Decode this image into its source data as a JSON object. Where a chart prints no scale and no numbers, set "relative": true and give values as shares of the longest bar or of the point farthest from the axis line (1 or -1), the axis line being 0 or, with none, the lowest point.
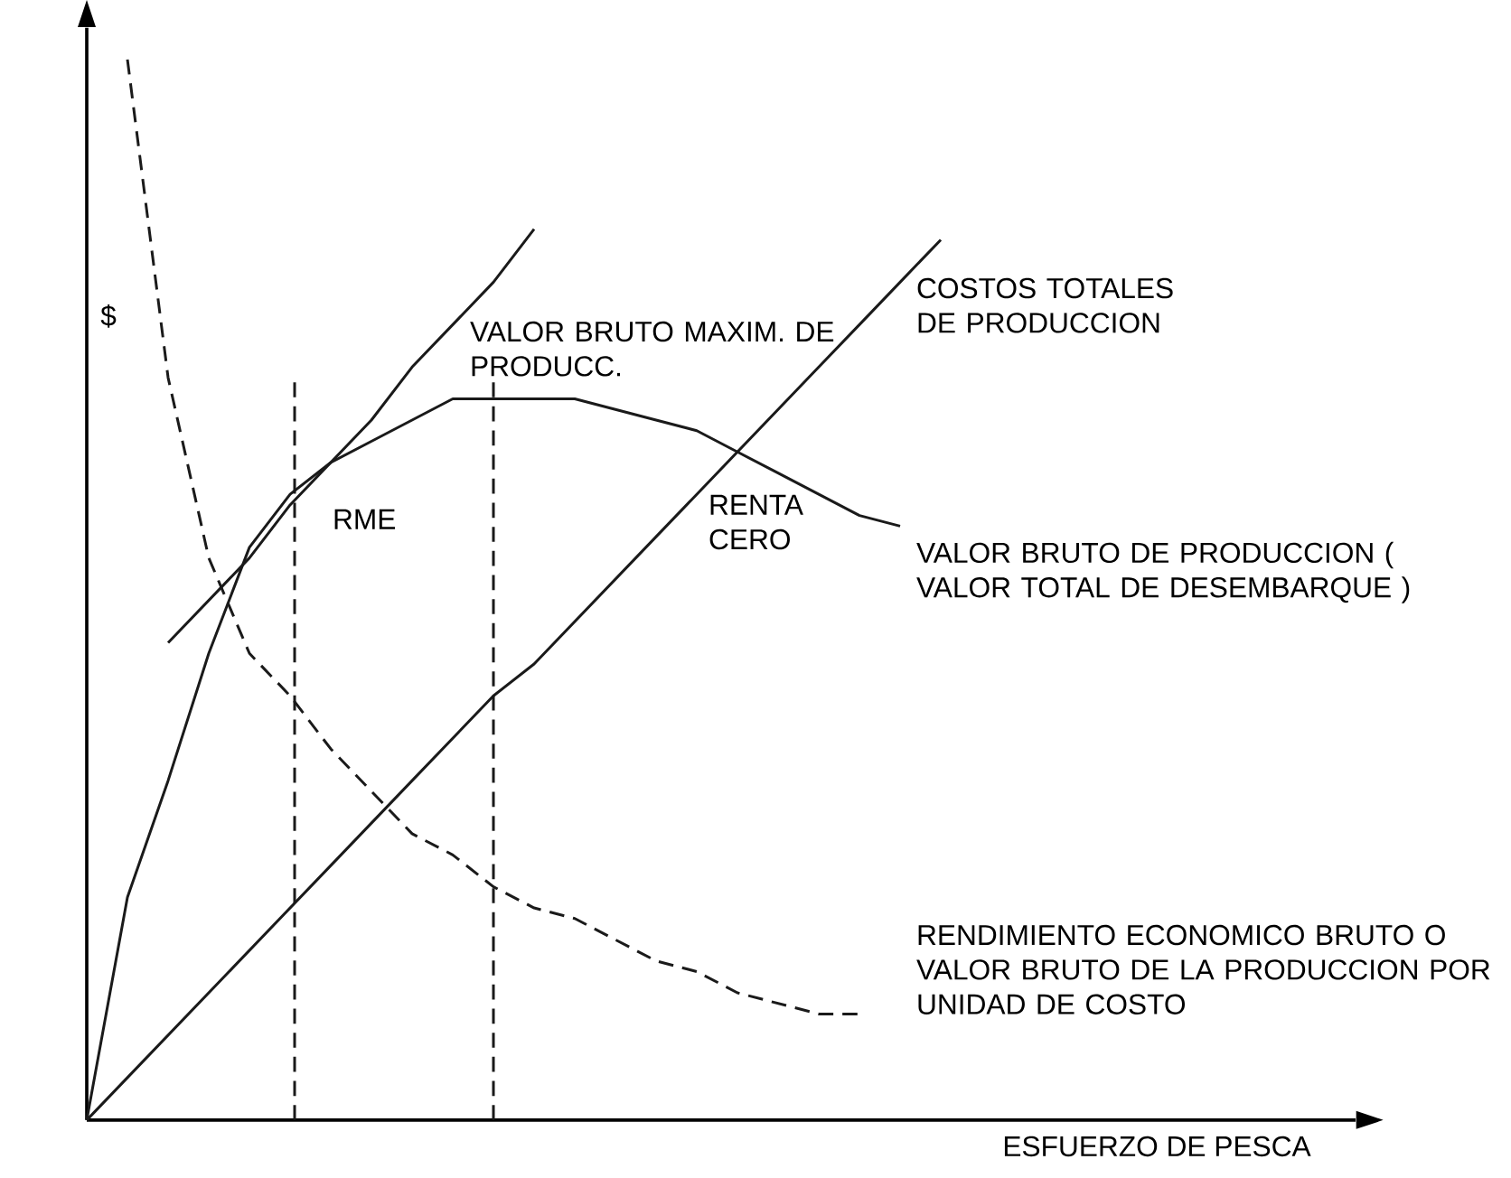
{
  "chart_data": {
    "type": "line",
    "relative": true,
    "xlabel": "ESFUERZO DE PESCA",
    "ylabel": "$",
    "categories": [
      null,
      null,
      null,
      null,
      null,
      null,
      null,
      null,
      null,
      null,
      null,
      null,
      null,
      null,
      null,
      null,
      null,
      null,
      null,
      null,
      null,
      null,
      null,
      null,
      null,
      null,
      null,
      null,
      null,
      null,
      null,
      null
    ],
    "series": [
      {
        "name": "COSTOS TOTALES DE PRODUCCION",
        "color": "#1a1a1a",
        "line_style": "solid",
        "values": [
          0,
          0.04,
          0.08,
          0.12,
          0.16,
          0.2,
          0.24,
          0.28,
          0.32,
          0.36,
          0.4,
          0.43,
          0.47,
          0.51,
          0.55,
          0.59,
          0.63,
          0.67,
          0.71,
          0.75,
          0.79,
          0.83,
          null,
          null,
          null,
          null,
          null,
          null,
          null,
          null,
          null,
          null
        ]
      },
      {
        "name": "VALOR BRUTO DE PRODUCCION ( VALOR TOTAL DE DESEMBARQUE )",
        "color": "#1a1a1a",
        "line_style": "solid",
        "values": [
          0,
          0.21,
          0.32,
          0.44,
          0.54,
          0.59,
          0.62,
          0.64,
          0.66,
          0.68,
          0.68,
          0.68,
          0.68,
          0.67,
          0.66,
          0.65,
          0.63,
          0.61,
          0.59,
          0.57,
          0.56,
          null,
          null,
          null,
          null,
          null,
          null,
          null,
          null,
          null,
          null,
          null
        ]
      },
      {
        "color": "#1a1a1a",
        "line_style": "solid",
        "values": [
          null,
          null,
          0.45,
          0.49,
          0.53,
          0.58,
          0.62,
          0.66,
          0.71,
          0.75,
          0.79,
          0.84,
          null,
          null,
          null,
          null,
          null,
          null,
          null,
          null,
          null,
          null,
          null,
          null,
          null,
          null,
          null,
          null,
          null,
          null,
          null,
          null
        ]
      },
      {
        "name": "RENDIMIENTO ECONOMICO BRUTO O VALOR BRUTO DE LA PRODUCCION POR UNIDAD DE COSTO",
        "color": "#1a1a1a",
        "line_style": "dashed",
        "values": [
          null,
          1,
          0.7,
          0.53,
          0.44,
          0.4,
          0.35,
          0.31,
          0.27,
          0.25,
          0.22,
          0.2,
          0.19,
          0.17,
          0.15,
          0.14,
          0.12,
          0.11,
          0.1,
          0.1,
          null,
          null,
          null,
          null,
          null,
          null,
          null,
          null,
          null,
          null,
          null,
          null
        ]
      }
    ],
    "annotations": [
      "VALOR BRUTO MAXIM. DE PRODUCC.",
      "RME",
      "RENTA CERO"
    ]
  }
}
